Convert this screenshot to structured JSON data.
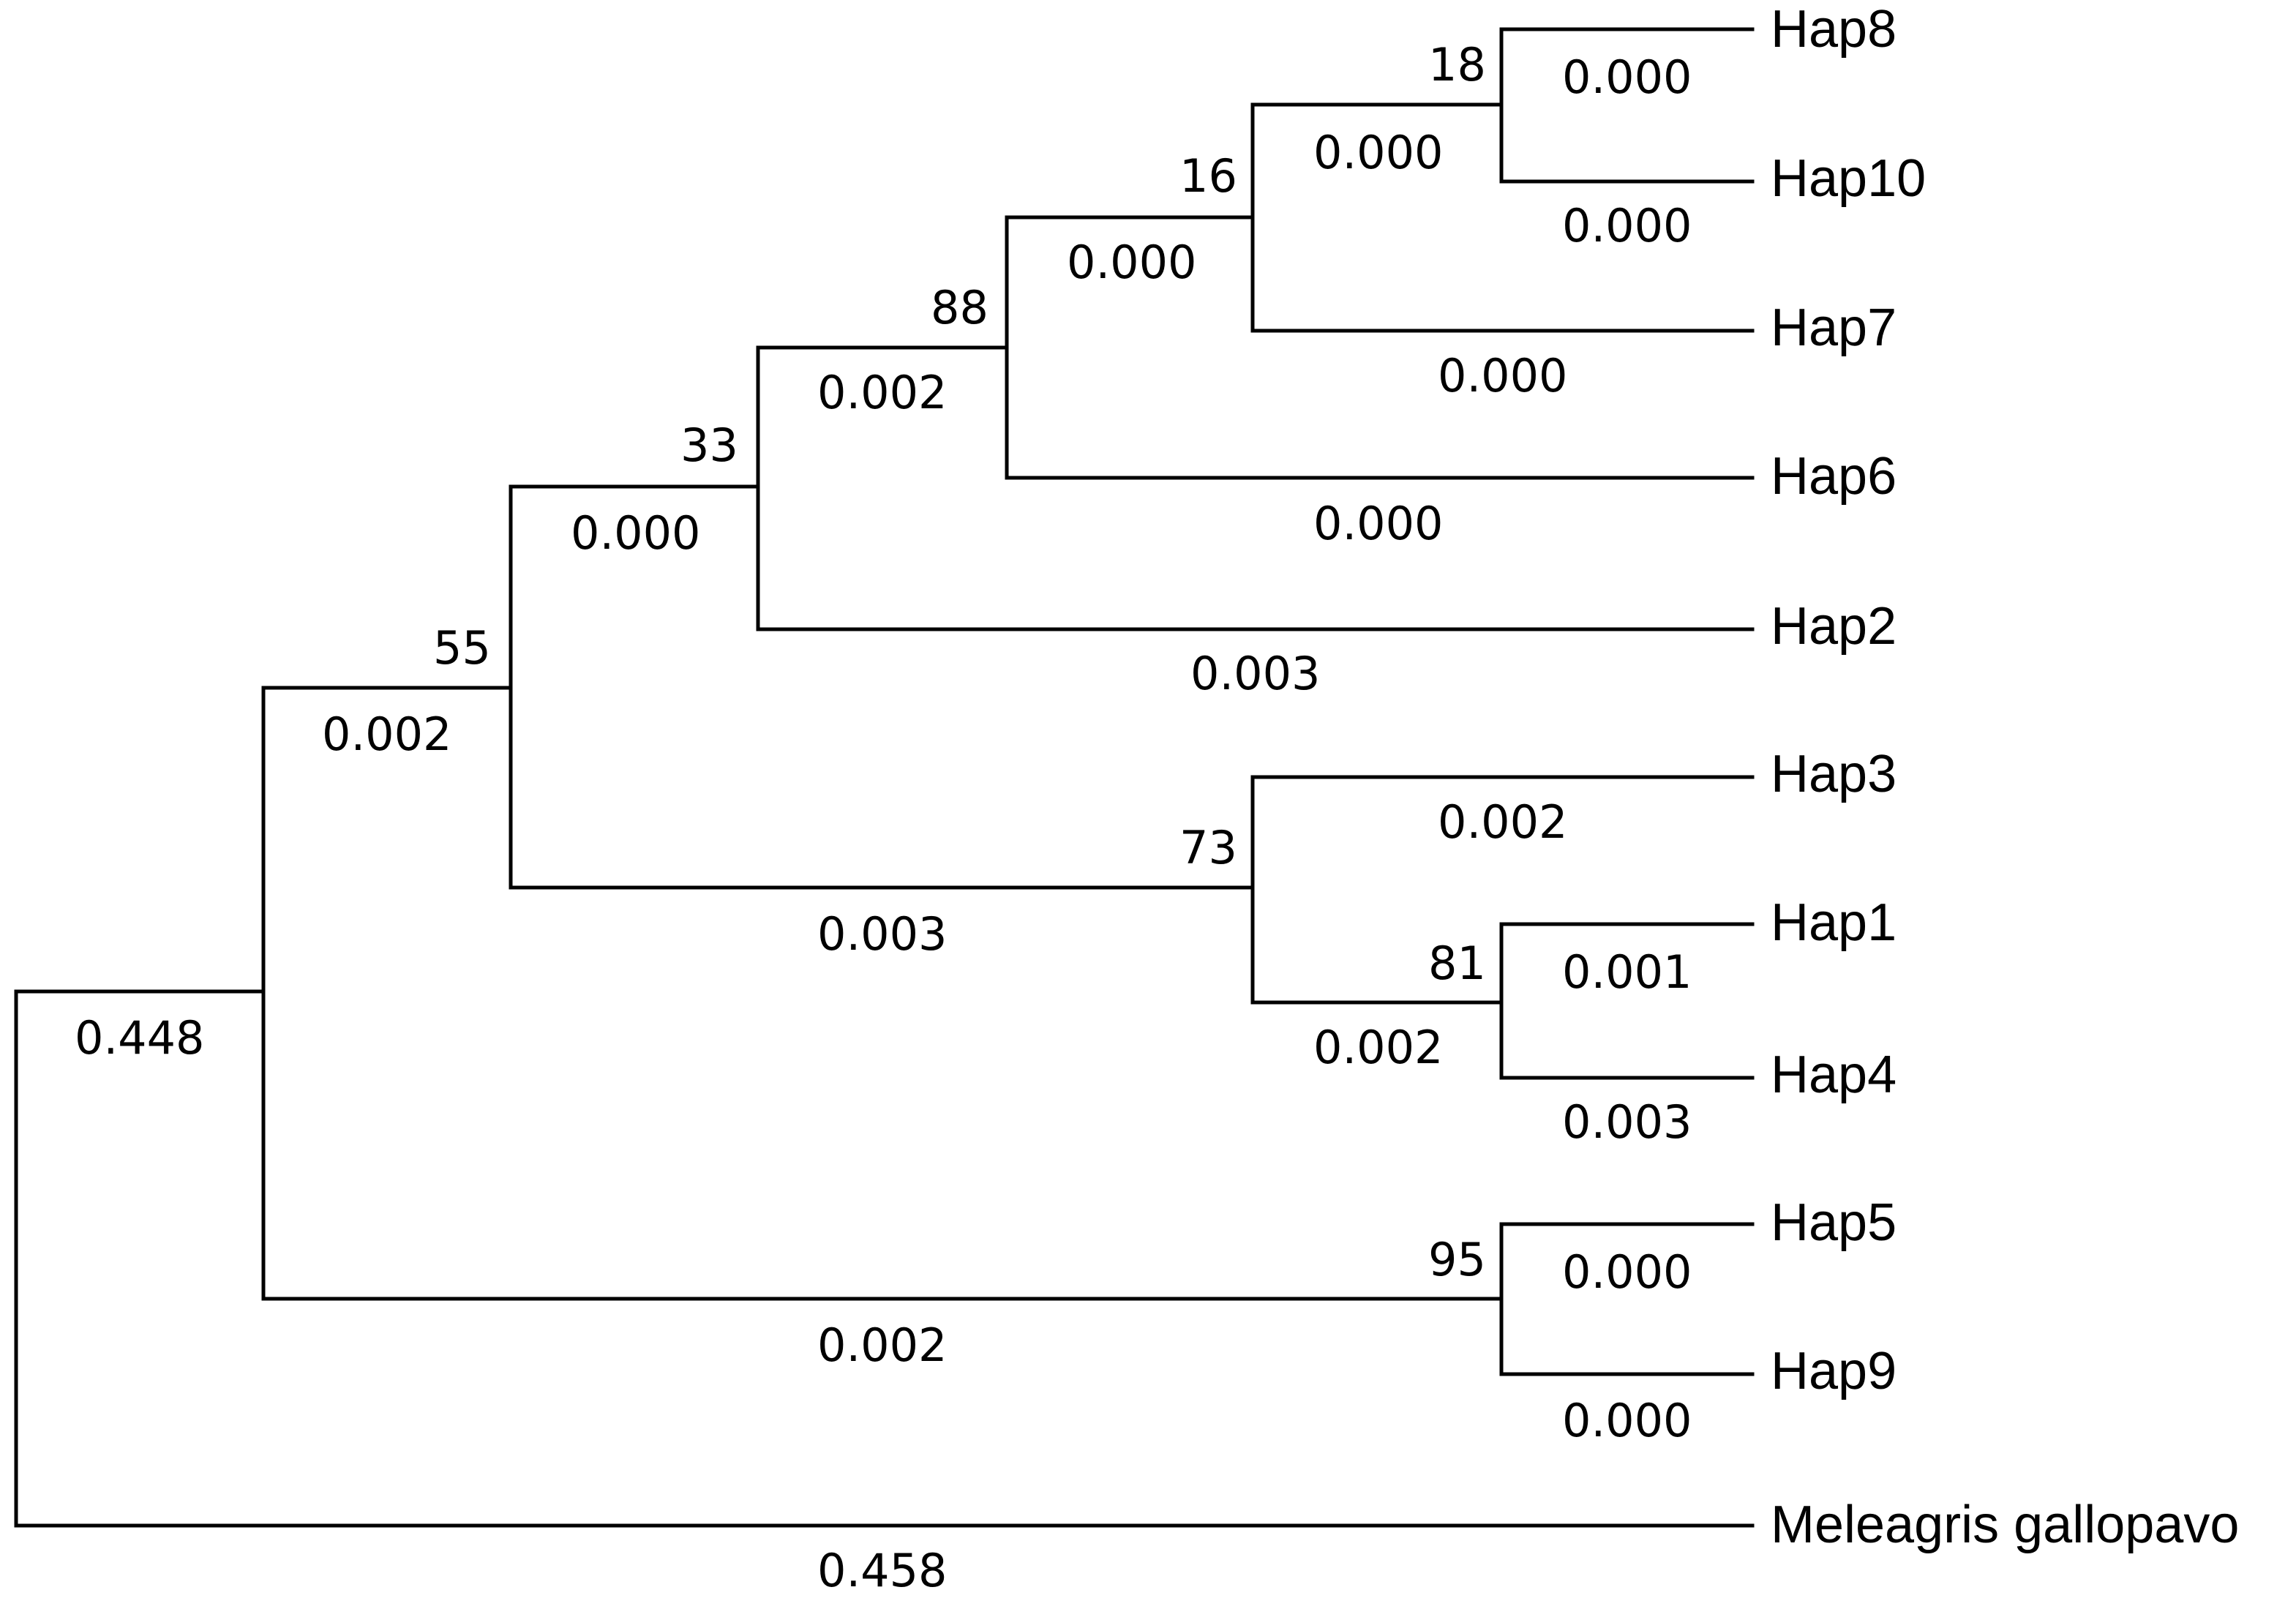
{
  "tree": {
    "taxa": [
      {
        "id": "hap8",
        "name": "Hap8",
        "length": "0.000"
      },
      {
        "id": "hap10",
        "name": "Hap10",
        "length": "0.000"
      },
      {
        "id": "hap7",
        "name": "Hap7",
        "length": "0.000"
      },
      {
        "id": "hap6",
        "name": "Hap6",
        "length": "0.000"
      },
      {
        "id": "hap2",
        "name": "Hap2",
        "length": "0.003"
      },
      {
        "id": "hap3",
        "name": "Hap3",
        "length": "0.002"
      },
      {
        "id": "hap1",
        "name": "Hap1",
        "length": "0.001"
      },
      {
        "id": "hap4",
        "name": "Hap4",
        "length": "0.003"
      },
      {
        "id": "hap5",
        "name": "Hap5",
        "length": "0.000"
      },
      {
        "id": "hap9",
        "name": "Hap9",
        "length": "0.000"
      },
      {
        "id": "meleagris",
        "name": "Meleagris gallopavo",
        "length": "0.458"
      }
    ],
    "internal_nodes": [
      {
        "id": "n8_10",
        "support": "18",
        "length": "0.000"
      },
      {
        "id": "n7",
        "support": "16",
        "length": "0.000"
      },
      {
        "id": "n6",
        "support": "88",
        "length": "0.002"
      },
      {
        "id": "n2",
        "support": "33",
        "length": "0.000"
      },
      {
        "id": "n_upper",
        "support": "55",
        "length": "0.002"
      },
      {
        "id": "n3",
        "support": "73",
        "length": "0.003"
      },
      {
        "id": "n1_4",
        "support": "81",
        "length": "0.002"
      },
      {
        "id": "n5_9",
        "support": "95",
        "length": "0.002"
      },
      {
        "id": "n_ingroup",
        "support": "",
        "length": "0.448"
      }
    ]
  }
}
